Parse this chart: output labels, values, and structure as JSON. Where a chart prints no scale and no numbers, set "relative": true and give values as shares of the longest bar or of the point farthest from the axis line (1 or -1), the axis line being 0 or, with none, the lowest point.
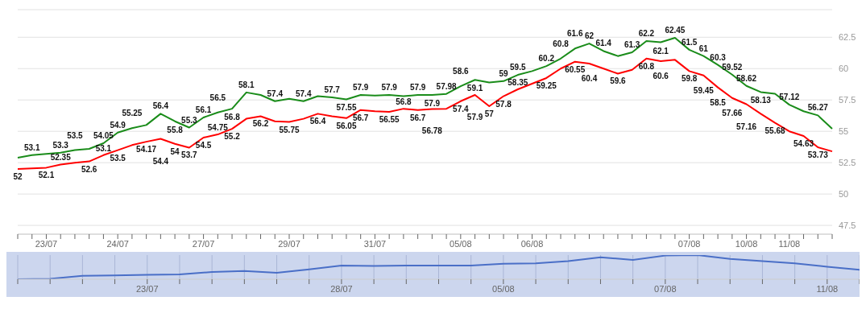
{
  "chart_data": [
    {
      "type": "line",
      "categories": [
        null,
        null,
        "23/07",
        null,
        null,
        null,
        null,
        "24/07",
        null,
        null,
        null,
        null,
        null,
        "27/07",
        null,
        null,
        null,
        null,
        null,
        "29/07",
        null,
        null,
        null,
        null,
        null,
        "31/07",
        null,
        null,
        null,
        null,
        null,
        "05/08",
        null,
        null,
        null,
        null,
        "06/08",
        null,
        null,
        null,
        null,
        null,
        null,
        null,
        null,
        null,
        null,
        "07/08",
        null,
        null,
        null,
        "10/08",
        null,
        null,
        "11/08",
        null,
        null,
        null
      ],
      "series": [
        {
          "color": "#1a8c1a",
          "values": [
            52.9,
            53.1,
            53.2,
            53.3,
            53.5,
            53.6,
            54.05,
            54.9,
            55.25,
            55.5,
            56.4,
            55.8,
            55.3,
            56.1,
            56.5,
            56.8,
            58.1,
            57.9,
            57.4,
            57.6,
            57.4,
            57.8,
            57.7,
            57.55,
            57.9,
            57.85,
            57.9,
            57.8,
            57.9,
            57.9,
            57.98,
            58.6,
            59.1,
            58.9,
            59,
            59.5,
            59.8,
            60.2,
            60.8,
            61.6,
            62,
            61.4,
            61,
            61.3,
            62.2,
            62.1,
            62.45,
            61.5,
            61,
            60.3,
            59.52,
            58.62,
            58.13,
            58,
            57.12,
            56.6,
            56.27,
            55.2
          ],
          "value_labels": [
            null,
            "53.1",
            null,
            "53.3",
            "53.5",
            null,
            "54.05",
            "54.9",
            "55.25",
            null,
            "56.4",
            "55.8",
            "55.3",
            "56.1",
            "56.5",
            "56.8",
            "58.1",
            null,
            "57.4",
            null,
            "57.4",
            null,
            "57.7",
            "57.55",
            "57.9",
            null,
            "57.9",
            null,
            "57.9",
            "57.9",
            "57.98",
            "58.6",
            "59.1",
            null,
            "59",
            "59.5",
            null,
            "60.2",
            "60.8",
            "61.6",
            "62",
            "61.4",
            null,
            "61.3",
            "62.2",
            "62.1",
            "62.45",
            "61.5",
            "61",
            "60.3",
            "59.52",
            "58.62",
            "58.13",
            null,
            "57.12",
            null,
            "56.27",
            null
          ]
        },
        {
          "color": "#ff0000",
          "values": [
            52,
            52.05,
            52.1,
            52.35,
            52.5,
            52.6,
            53.1,
            53.5,
            53.9,
            54.17,
            54.4,
            54,
            53.7,
            54.5,
            54.75,
            55.2,
            56,
            56.2,
            55.8,
            55.75,
            56,
            56.4,
            56.2,
            56.05,
            56.7,
            56.6,
            56.55,
            56.8,
            56.7,
            56.78,
            56.8,
            57.4,
            57.9,
            57,
            57.8,
            58.35,
            58.8,
            59.25,
            60,
            60.55,
            60.4,
            60,
            59.6,
            59.9,
            60.8,
            60.6,
            60.7,
            59.8,
            59.45,
            58.5,
            57.66,
            57.16,
            56.4,
            55.68,
            55,
            54.63,
            53.73,
            53.4
          ],
          "value_labels": [
            "52",
            null,
            "52.1",
            "52.35",
            null,
            "52.6",
            "53.1",
            "53.5",
            null,
            "54.17",
            "54.4",
            "54",
            "53.7",
            "54.5",
            "54.75",
            "55.2",
            null,
            "56.2",
            null,
            "55.75",
            null,
            "56.4",
            null,
            "56.05",
            "56.7",
            null,
            "56.55",
            "56.8",
            "56.7",
            "56.78",
            null,
            "57.4",
            "57.9",
            "57",
            "57.8",
            "58.35",
            null,
            "59.25",
            null,
            "60.55",
            "60.4",
            null,
            "59.6",
            null,
            "60.8",
            "60.6",
            null,
            "59.8",
            "59.45",
            "58.5",
            "57.66",
            "57.16",
            null,
            "55.68",
            null,
            "54.63",
            "53.73",
            null
          ]
        }
      ],
      "ylim": [
        46.8,
        64.7
      ],
      "yticks": [
        47.5,
        50,
        52.5,
        55,
        57.5,
        60,
        62.5
      ],
      "grid": "y",
      "marker": "none",
      "line_style": "solid",
      "legend": false
    },
    {
      "type": "line",
      "relative": true,
      "tick_labels": "x",
      "categories": [
        null,
        null,
        null,
        null,
        "23/07",
        null,
        null,
        null,
        null,
        null,
        "28/07",
        null,
        null,
        null,
        null,
        "05/08",
        null,
        null,
        null,
        null,
        "07/08",
        null,
        null,
        null,
        null,
        "11/08",
        null
      ],
      "series": [
        {
          "color": "#4a6fc7",
          "values": [
            0,
            0.02,
            0.14,
            0.16,
            0.18,
            0.2,
            0.3,
            0.34,
            0.27,
            0.41,
            0.57,
            0.55,
            0.57,
            0.57,
            0.57,
            0.64,
            0.66,
            0.75,
            0.91,
            0.8,
            0.98,
            1,
            0.84,
            0.75,
            0.66,
            0.52,
            0.39
          ]
        }
      ],
      "grid": "x",
      "marker": "none",
      "line_style": "solid",
      "legend": false
    }
  ]
}
